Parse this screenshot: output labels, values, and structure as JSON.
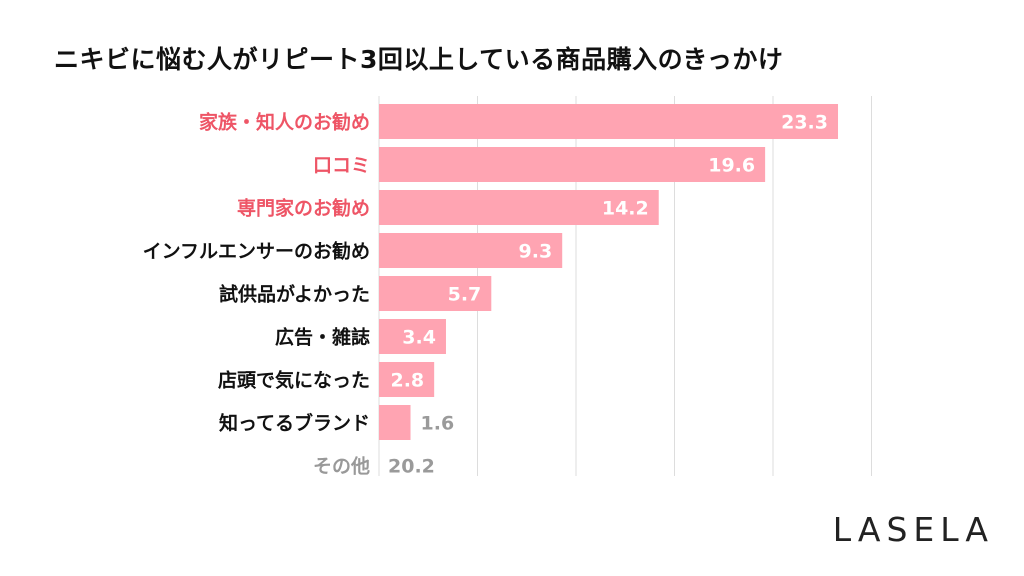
{
  "chart_data": {
    "type": "bar",
    "orientation": "horizontal",
    "title": "ニキビに悩む人がリピート3回以上している商品購入のきっかけ",
    "categories": [
      "家族・知人のお勧め",
      "口コミ",
      "専門家のお勧め",
      "インフルエンサーのお勧め",
      "試供品がよかった",
      "広告・雑誌",
      "店頭で気になった",
      "知ってるブランド",
      "その他"
    ],
    "values": [
      23.3,
      19.6,
      14.2,
      9.3,
      5.7,
      3.4,
      2.8,
      1.6,
      20.2
    ],
    "value_labels": [
      "23.3",
      "19.6",
      "14.2",
      "9.3",
      "5.7",
      "3.4",
      "2.8",
      "1.6",
      "20.2"
    ],
    "highlighted": [
      true,
      true,
      true,
      false,
      false,
      false,
      false,
      false,
      false
    ],
    "bar_drawn": [
      true,
      true,
      true,
      true,
      true,
      true,
      true,
      true,
      false
    ],
    "xlim": [
      0,
      25
    ],
    "grid_step": 5,
    "xlabel": "",
    "ylabel": "",
    "colors": {
      "bar": "#ffa4b2",
      "highlight_label": "#ee5566",
      "normal_label": "#111111",
      "muted_label": "#999999",
      "value_inside": "#ffffff",
      "value_outside": "#9a9a9a",
      "grid": "#dddddd"
    }
  },
  "brand": "LASELA"
}
